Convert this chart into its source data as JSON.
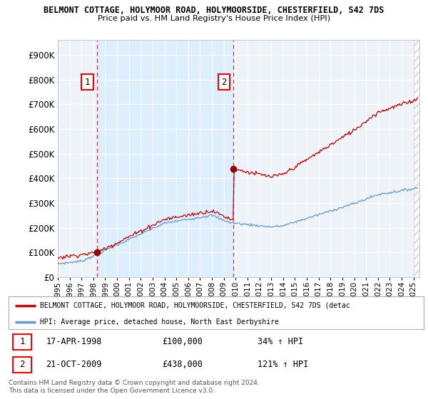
{
  "title1": "BELMONT COTTAGE, HOLYMOOR ROAD, HOLYMOORSIDE, CHESTERFIELD, S42 7DS",
  "title2": "Price paid vs. HM Land Registry's House Price Index (HPI)",
  "ytick_values": [
    0,
    100000,
    200000,
    300000,
    400000,
    500000,
    600000,
    700000,
    800000,
    900000
  ],
  "ylim": [
    0,
    960000
  ],
  "xlim_start": 1995.0,
  "xlim_end": 2025.5,
  "purchase1_date": 1998.29,
  "purchase1_price": 100000,
  "purchase1_label": "1",
  "purchase2_date": 2009.8,
  "purchase2_price": 438000,
  "purchase2_label": "2",
  "red_line_color": "#cc0000",
  "blue_line_color": "#6699cc",
  "purchase_marker_color": "#990000",
  "dashed_line_color": "#dd4444",
  "background_color": "#ffffff",
  "plot_bg_color": "#eef3fa",
  "shade_color": "#ddeeff",
  "grid_color": "#ffffff",
  "legend_red_label": "BELMONT COTTAGE, HOLYMOOR ROAD, HOLYMOORSIDE, CHESTERFIELD, S42 7DS (detac",
  "legend_blue_label": "HPI: Average price, detached house, North East Derbyshire",
  "annotation1_date": "17-APR-1998",
  "annotation1_price": "£100,000",
  "annotation1_hpi": "34% ↑ HPI",
  "annotation2_date": "21-OCT-2009",
  "annotation2_price": "£438,000",
  "annotation2_hpi": "121% ↑ HPI",
  "footer": "Contains HM Land Registry data © Crown copyright and database right 2024.\nThis data is licensed under the Open Government Licence v3.0."
}
